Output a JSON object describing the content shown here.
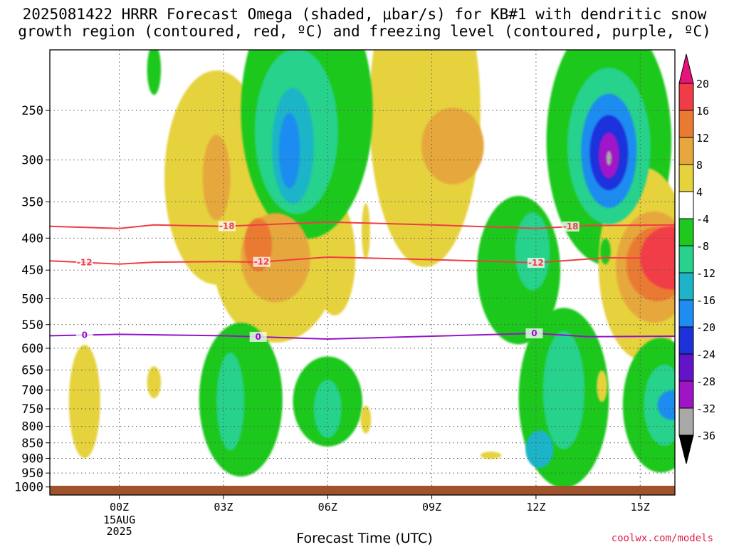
{
  "title": {
    "line1": "2025081422 HRRR Forecast Omega (shaded, μbar/s) for KB#1 with dendritic snow",
    "line2": "growth region (contoured, red, ºC) and freezing level (contoured, purple, ºC)"
  },
  "x_axis_label": "Forecast Time (UTC)",
  "credit": "coolwx.com/models",
  "chart_data": {
    "type": "heatmap",
    "title": "2025081422 HRRR Forecast Omega (shaded, μbar/s) for KB#1 with dendritic snow growth region (contoured, red, ºC) and freezing level (contoured, purple, ºC)",
    "xlabel": "Forecast Time (UTC)",
    "ylabel": "",
    "x_ticks": [
      {
        "t": 0,
        "label": "00Z",
        "sub": [
          "15AUG",
          "2025"
        ]
      },
      {
        "t": 3,
        "label": "03Z"
      },
      {
        "t": 6,
        "label": "06Z"
      },
      {
        "t": 9,
        "label": "09Z"
      },
      {
        "t": 12,
        "label": "12Z"
      },
      {
        "t": 15,
        "label": "15Z"
      }
    ],
    "xlim": [
      -2,
      16
    ],
    "y_ticks": [
      250,
      300,
      350,
      400,
      450,
      500,
      550,
      600,
      650,
      700,
      750,
      800,
      850,
      900,
      950,
      1000
    ],
    "ylim_hPa": [
      200,
      1030
    ],
    "colorbar": {
      "labels": [
        "20",
        "16",
        "12",
        "8",
        "4",
        "-4",
        "-8",
        "-12",
        "-16",
        "-20",
        "-24",
        "-28",
        "-32",
        "-36"
      ],
      "colors": [
        "#e6147a",
        "#f03c46",
        "#ea7a32",
        "#e6a83c",
        "#e6d23c",
        "#ffffff",
        "#1ec81e",
        "#28d28c",
        "#1eb4c8",
        "#1e8cf0",
        "#1e32dc",
        "#6414c8",
        "#a014c8",
        "#a8a8a8",
        "#000000"
      ]
    },
    "contours": [
      {
        "name": "-18",
        "color": "#f03c46",
        "label_times": [
          3.1,
          13.0
        ],
        "points": [
          [
            -2,
            383
          ],
          [
            0,
            386
          ],
          [
            1,
            381
          ],
          [
            3,
            383
          ],
          [
            6,
            377
          ],
          [
            9,
            381
          ],
          [
            12,
            386
          ],
          [
            13.5,
            382
          ],
          [
            16,
            381
          ]
        ]
      },
      {
        "name": "-12",
        "color": "#f03c46",
        "label_times": [
          -1.0,
          4.1,
          12.0
        ],
        "points": [
          [
            -2,
            435
          ],
          [
            0,
            440
          ],
          [
            1,
            437
          ],
          [
            3,
            436
          ],
          [
            4,
            437
          ],
          [
            6,
            429
          ],
          [
            9,
            433
          ],
          [
            12,
            438
          ],
          [
            14,
            430
          ],
          [
            16,
            431
          ]
        ]
      },
      {
        "name": "0",
        "color": "#9614c8",
        "label_times": [
          -1.0,
          4.0,
          11.95
        ],
        "points": [
          [
            -2,
            573
          ],
          [
            0,
            570
          ],
          [
            3,
            573
          ],
          [
            6,
            580
          ],
          [
            9,
            574
          ],
          [
            12,
            568
          ],
          [
            13.5,
            575
          ],
          [
            16,
            574
          ]
        ]
      }
    ],
    "omega_regions": [
      {
        "t": 2.8,
        "p": 320,
        "rt": 1.5,
        "rp": 120,
        "omega": 6
      },
      {
        "t": 4.5,
        "p": 430,
        "rt": 1.8,
        "rp": 130,
        "omega": 6
      },
      {
        "t": 4.5,
        "p": 430,
        "rt": 1.0,
        "rp": 70,
        "omega": 10
      },
      {
        "t": 4.0,
        "p": 410,
        "rt": 0.4,
        "rp": 40,
        "omega": 15
      },
      {
        "t": 2.8,
        "p": 320,
        "rt": 0.4,
        "rp": 50,
        "omega": 10
      },
      {
        "t": 8.8,
        "p": 250,
        "rt": 1.6,
        "rp": 130,
        "omega": 6
      },
      {
        "t": 9.6,
        "p": 285,
        "rt": 0.9,
        "rp": 40,
        "omega": 10
      },
      {
        "t": 6.2,
        "p": 430,
        "rt": 0.6,
        "rp": 90,
        "omega": 6
      },
      {
        "t": 5.4,
        "p": 250,
        "rt": 1.9,
        "rp": 110,
        "omega": -6
      },
      {
        "t": 5.1,
        "p": 270,
        "rt": 1.2,
        "rp": 80,
        "omega": -10
      },
      {
        "t": 5.0,
        "p": 285,
        "rt": 0.6,
        "rp": 60,
        "omega": -14
      },
      {
        "t": 4.9,
        "p": 290,
        "rt": 0.3,
        "rp": 40,
        "omega": -18
      },
      {
        "t": 14.1,
        "p": 280,
        "rt": 1.8,
        "rp": 120,
        "omega": -6
      },
      {
        "t": 14.1,
        "p": 285,
        "rt": 1.2,
        "rp": 80,
        "omega": -10
      },
      {
        "t": 14.1,
        "p": 290,
        "rt": 0.8,
        "rp": 60,
        "omega": -16
      },
      {
        "t": 14.1,
        "p": 292,
        "rt": 0.55,
        "rp": 40,
        "omega": -22
      },
      {
        "t": 14.1,
        "p": 295,
        "rt": 0.3,
        "rp": 25,
        "omega": -28
      },
      {
        "t": 14.1,
        "p": 298,
        "rt": 0.08,
        "rp": 8,
        "omega": -34
      },
      {
        "t": 15.1,
        "p": 440,
        "rt": 1.3,
        "rp": 150,
        "omega": 6
      },
      {
        "t": 15.4,
        "p": 445,
        "rt": 1.1,
        "rp": 90,
        "omega": 10
      },
      {
        "t": 15.5,
        "p": 440,
        "rt": 0.9,
        "rp": 60,
        "omega": 14
      },
      {
        "t": 15.9,
        "p": 430,
        "rt": 0.9,
        "rp": 50,
        "omega": 18
      },
      {
        "t": 11.5,
        "p": 450,
        "rt": 1.2,
        "rp": 120,
        "omega": -6
      },
      {
        "t": 11.9,
        "p": 420,
        "rt": 0.5,
        "rp": 60,
        "omega": -10
      },
      {
        "t": 3.5,
        "p": 725,
        "rt": 1.2,
        "rp": 200,
        "omega": -6
      },
      {
        "t": 3.2,
        "p": 730,
        "rt": 0.4,
        "rp": 130,
        "omega": -10
      },
      {
        "t": 6.0,
        "p": 730,
        "rt": 1.0,
        "rp": 120,
        "omega": -6
      },
      {
        "t": 6.0,
        "p": 750,
        "rt": 0.4,
        "rp": 80,
        "omega": -10
      },
      {
        "t": 12.8,
        "p": 720,
        "rt": 1.3,
        "rp": 230,
        "omega": -6
      },
      {
        "t": 12.8,
        "p": 700,
        "rt": 0.6,
        "rp": 150,
        "omega": -10
      },
      {
        "t": 12.1,
        "p": 870,
        "rt": 0.4,
        "rp": 60,
        "omega": -14
      },
      {
        "t": 15.6,
        "p": 740,
        "rt": 1.1,
        "rp": 180,
        "omega": -6
      },
      {
        "t": 15.7,
        "p": 740,
        "rt": 0.6,
        "rp": 110,
        "omega": -10
      },
      {
        "t": 15.9,
        "p": 740,
        "rt": 0.4,
        "rp": 40,
        "omega": -16
      },
      {
        "t": -1.0,
        "p": 730,
        "rt": 0.45,
        "rp": 150,
        "omega": 6
      },
      {
        "t": 1.0,
        "p": 680,
        "rt": 0.2,
        "rp": 40,
        "omega": 6
      },
      {
        "t": 7.1,
        "p": 780,
        "rt": 0.15,
        "rp": 40,
        "omega": 6
      },
      {
        "t": 7.1,
        "p": 390,
        "rt": 0.12,
        "rp": 40,
        "omega": 6
      },
      {
        "t": 1.0,
        "p": 215,
        "rt": 0.2,
        "rp": 20,
        "omega": -6
      },
      {
        "t": 14.0,
        "p": 420,
        "rt": 0.15,
        "rp": 20,
        "omega": -6
      },
      {
        "t": 13.9,
        "p": 690,
        "rt": 0.15,
        "rp": 40,
        "omega": 6
      },
      {
        "t": 10.7,
        "p": 890,
        "rt": 0.3,
        "rp": 12,
        "omega": 6
      }
    ],
    "grid": true,
    "legend": "right colorbar"
  }
}
